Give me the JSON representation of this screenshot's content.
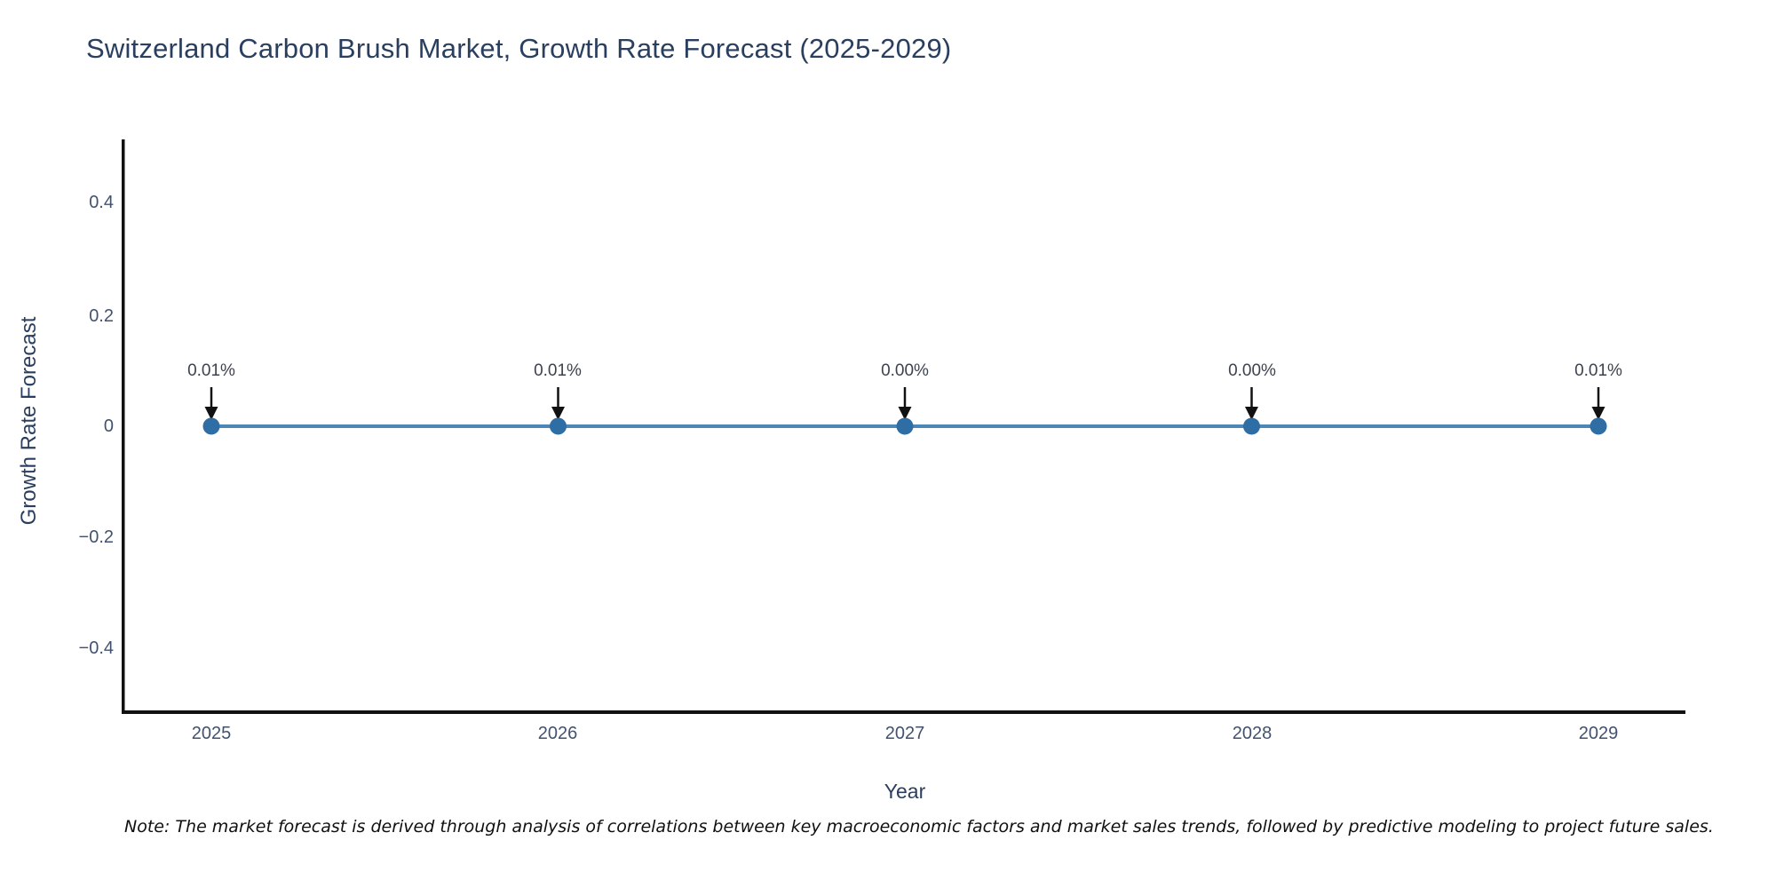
{
  "title": "Switzerland Carbon Brush Market, Growth Rate Forecast (2025-2029)",
  "note": "Note: The market forecast is derived through analysis of correlations between key macroeconomic factors and market sales trends, followed by predictive modeling to project future sales.",
  "chart_data": {
    "type": "line",
    "title": "Switzerland Carbon Brush Market, Growth Rate Forecast (2025-2029)",
    "xlabel": "Year",
    "ylabel": "Growth Rate Forecast",
    "x": [
      2025,
      2026,
      2027,
      2028,
      2029
    ],
    "xticklabels": [
      "2025",
      "2026",
      "2027",
      "2028",
      "2029"
    ],
    "series": [
      {
        "name": "Growth Rate Forecast",
        "values_pct": [
          0.01,
          0.01,
          0.0,
          0.0,
          0.01
        ]
      }
    ],
    "annotations": [
      "0.01%",
      "0.01%",
      "0.00%",
      "0.00%",
      "0.01%"
    ],
    "yticks": [
      "0.4",
      "0.2",
      "0",
      "−0.2",
      "−0.4"
    ],
    "ytick_values": [
      0.4,
      0.2,
      0,
      -0.2,
      -0.4
    ],
    "ylim": [
      -0.52,
      0.52
    ],
    "grid": false,
    "legend": "none",
    "line_color": "#4f86b8",
    "marker_color": "#2f6da5",
    "axis_color": "#111111",
    "arrow_color": "#111111",
    "title_color": "#2a3f5f",
    "tick_color": "#42526e"
  }
}
